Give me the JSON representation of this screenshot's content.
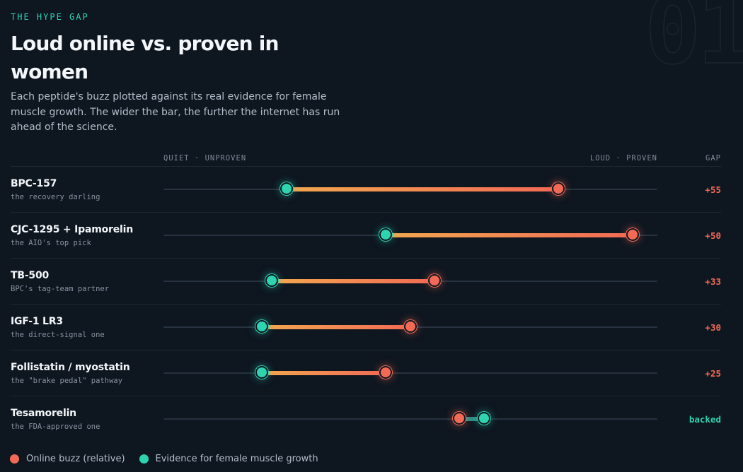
{
  "header": {
    "eyebrow": "THE HYPE GAP",
    "title": "Loud online vs. proven in women",
    "subtitle": "Each peptide's buzz plotted against its real evidence for female muscle growth. The wider the bar, the further the internet has run ahead of the science.",
    "section_number": "01"
  },
  "columns": {
    "left_label": "QUIET · UNPROVEN",
    "right_label": "LOUD · PROVEN",
    "gap_label": "GAP"
  },
  "colors": {
    "buzz": "#f26a55",
    "evidence": "#2ed3b0",
    "bar_start": "#f2a74e",
    "bar_end": "#f26a55",
    "backed_bar": "#2b8f86"
  },
  "chart_data": {
    "type": "dumbbell",
    "xlim": [
      0,
      100
    ],
    "rows": [
      {
        "name": "BPC-157",
        "subtitle": "the recovery darling",
        "evidence": 25,
        "buzz": 80,
        "gap": "+55"
      },
      {
        "name": "CJC-1295 + Ipamorelin",
        "subtitle": "the AIO's top pick",
        "evidence": 45,
        "buzz": 95,
        "gap": "+50"
      },
      {
        "name": "TB-500",
        "subtitle": "BPC's tag-team partner",
        "evidence": 22,
        "buzz": 55,
        "gap": "+33"
      },
      {
        "name": "IGF-1 LR3",
        "subtitle": "the direct-signal one",
        "evidence": 20,
        "buzz": 50,
        "gap": "+30"
      },
      {
        "name": "Follistatin / myostatin",
        "subtitle": "the \"brake pedal\" pathway",
        "evidence": 20,
        "buzz": 45,
        "gap": "+25"
      },
      {
        "name": "Tesamorelin",
        "subtitle": "the FDA-approved one",
        "evidence": 65,
        "buzz": 60,
        "gap": "backed"
      }
    ]
  },
  "legend": {
    "buzz_label": "Online buzz (relative)",
    "evidence_label": "Evidence for female muscle growth"
  }
}
